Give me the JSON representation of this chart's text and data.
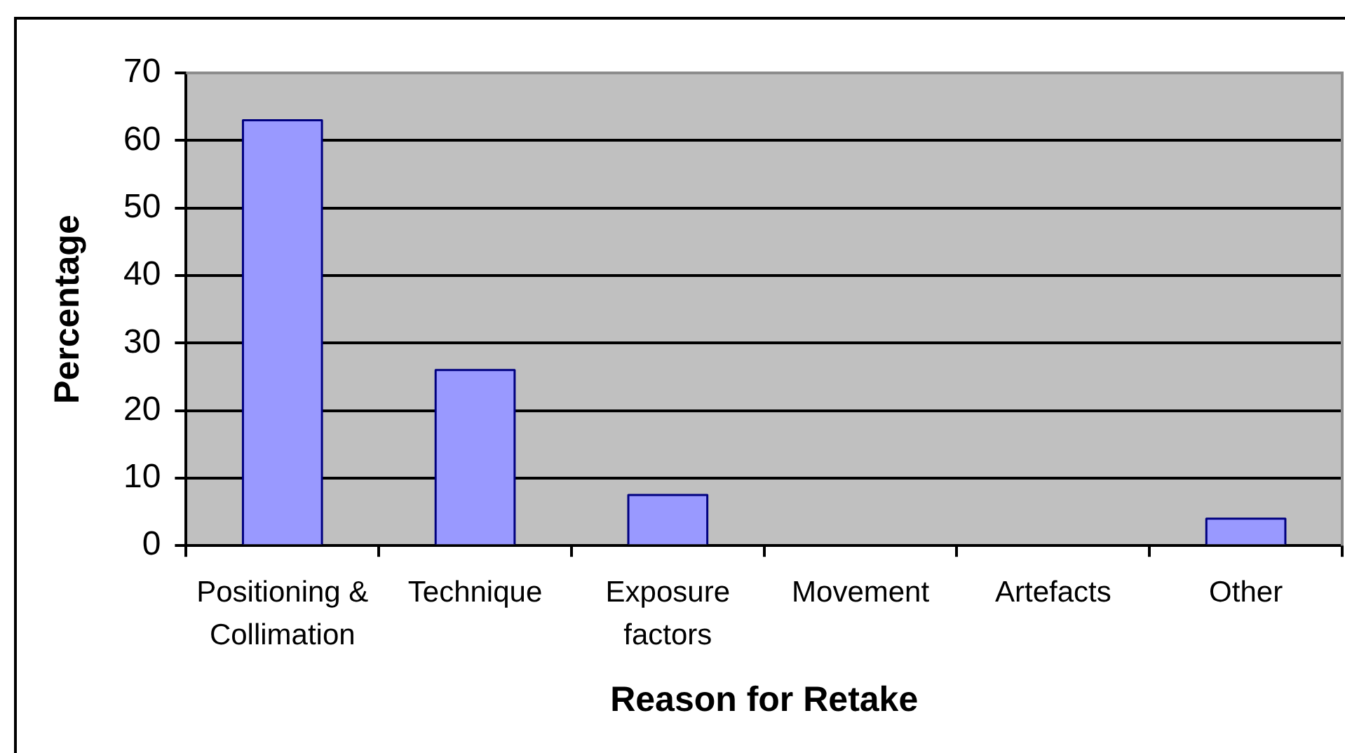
{
  "chart_data": {
    "type": "bar",
    "categories": [
      "Positioning & Collimation",
      "Technique",
      "Exposure factors",
      "Movement",
      "Artefacts",
      "Other"
    ],
    "values": [
      63,
      26,
      7.5,
      0,
      0,
      4
    ],
    "color": "#9999ff",
    "xlabel": "Reason for Retake",
    "ylabel": "Percentage",
    "ylim": [
      0,
      70
    ],
    "yticks": [
      0,
      10,
      20,
      30,
      40,
      50,
      60,
      70
    ],
    "grid": "y"
  }
}
